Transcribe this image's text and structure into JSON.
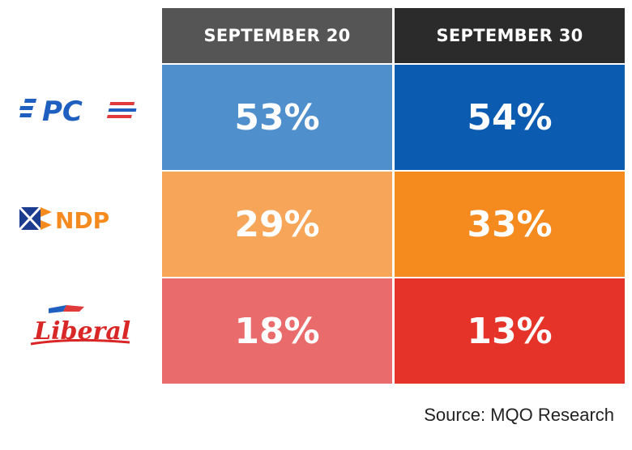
{
  "chart_data": {
    "type": "table",
    "columns": [
      "SEPTEMBER 20",
      "SEPTEMBER 30"
    ],
    "rows": [
      {
        "party": "PC",
        "logo_text": "PC",
        "values": [
          "53%",
          "54%"
        ],
        "numeric": [
          53,
          54
        ],
        "colors": [
          "#4f8fcc",
          "#0b5bb0"
        ]
      },
      {
        "party": "NDP",
        "logo_text": "NDP",
        "values": [
          "29%",
          "33%"
        ],
        "numeric": [
          29,
          33
        ],
        "colors": [
          "#f7a559",
          "#f58a1f"
        ]
      },
      {
        "party": "Liberal",
        "logo_text": "Liberal",
        "values": [
          "18%",
          "13%"
        ],
        "numeric": [
          18,
          13
        ],
        "colors": [
          "#ea6b6b",
          "#e63329"
        ]
      }
    ],
    "header_colors": [
      "#555555",
      "#2b2b2b"
    ]
  },
  "source": "Source: MQO Research"
}
